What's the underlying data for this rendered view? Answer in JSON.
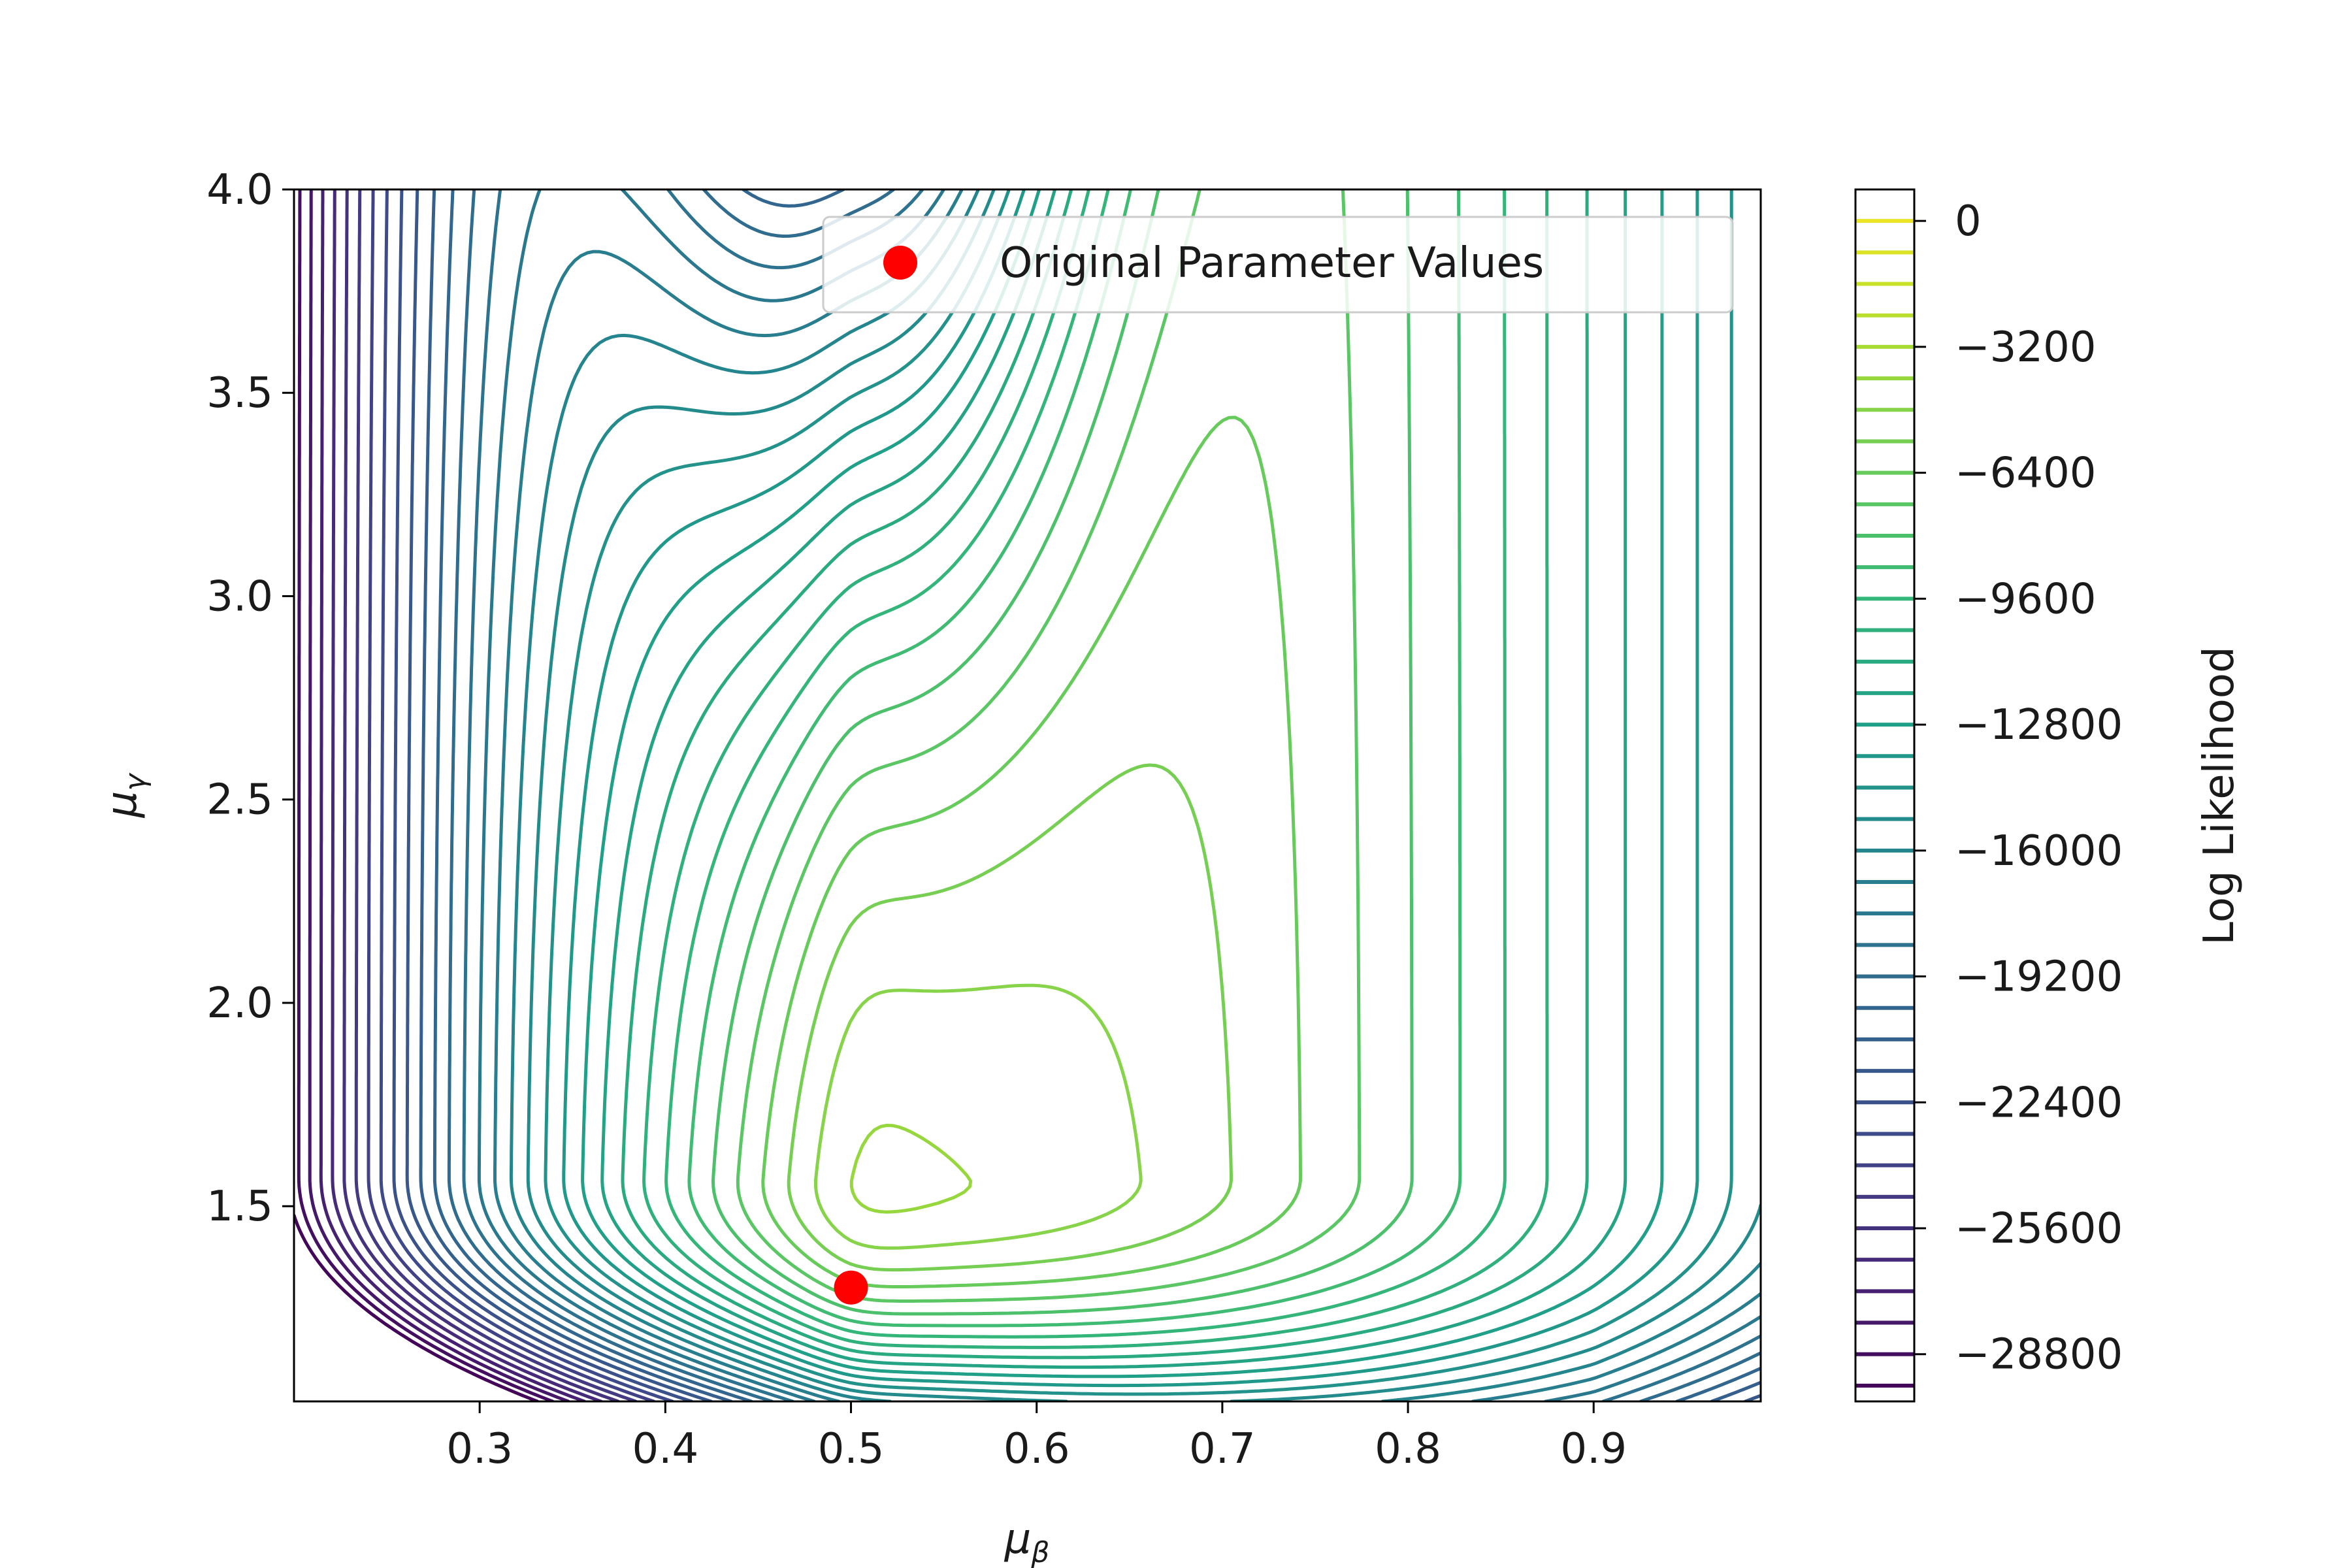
{
  "chart_data": {
    "type": "contour",
    "xlabel_base": "μ",
    "xlabel_sub": "β",
    "ylabel_base": "μ",
    "ylabel_sub": "γ",
    "xlim": [
      0.2,
      0.99
    ],
    "ylim": [
      1.02,
      4.0
    ],
    "x_ticks": [
      0.3,
      0.4,
      0.5,
      0.6,
      0.7,
      0.8,
      0.9
    ],
    "x_tick_labels": [
      "0.3",
      "0.4",
      "0.5",
      "0.6",
      "0.7",
      "0.8",
      "0.9"
    ],
    "y_ticks": [
      1.5,
      2.0,
      2.5,
      3.0,
      3.5,
      4.0
    ],
    "y_tick_labels": [
      "1.5",
      "2.0",
      "2.5",
      "3.0",
      "3.5",
      "4.0"
    ],
    "colorbar": {
      "label": "Log Likelihood",
      "vmin": -30000,
      "vmax": 800,
      "level_step": 800,
      "ticks": [
        0,
        -3200,
        -6400,
        -9600,
        -12800,
        -16000,
        -19200,
        -22400,
        -25600,
        -28800
      ],
      "tick_labels": [
        "0",
        "−3200",
        "−6400",
        "−9600",
        "−12800",
        "−16000",
        "−19200",
        "−22400",
        "−25600",
        "−28800"
      ],
      "colormap": "viridis"
    },
    "series": [
      {
        "name": "Original Parameter Values",
        "points": [
          {
            "x": 0.5,
            "y": 1.3
          }
        ],
        "color": "#ff0000"
      }
    ],
    "legend_position": "top-right",
    "grid": false
  }
}
